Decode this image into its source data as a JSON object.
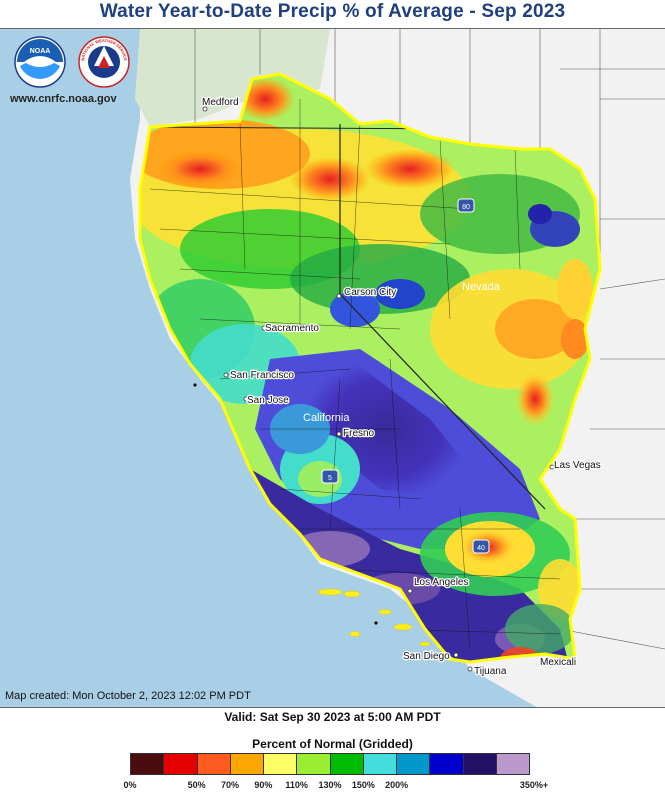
{
  "header": {
    "title": "Water Year-to-Date Precip % of Average - Sep 2023",
    "website": "www.cnrfc.noaa.gov"
  },
  "logos": {
    "noaa": "NOAA",
    "nws": "NATIONAL WEATHER SERVICE"
  },
  "map": {
    "places": [
      {
        "name": "Medford",
        "kind": "city"
      },
      {
        "name": "Carson City",
        "kind": "city"
      },
      {
        "name": "Nevada",
        "kind": "state"
      },
      {
        "name": "Sacramento",
        "kind": "city"
      },
      {
        "name": "San Francisco",
        "kind": "city"
      },
      {
        "name": "San Jose",
        "kind": "city"
      },
      {
        "name": "California",
        "kind": "state"
      },
      {
        "name": "Fresno",
        "kind": "city"
      },
      {
        "name": "Las Vegas",
        "kind": "city"
      },
      {
        "name": "Los Angeles",
        "kind": "city"
      },
      {
        "name": "San Diego",
        "kind": "city"
      },
      {
        "name": "Tijuana",
        "kind": "city"
      },
      {
        "name": "Mexicali",
        "kind": "city"
      }
    ],
    "highways": [
      "80",
      "5",
      "40"
    ],
    "colors": {
      "ocean": "#a9cfe6",
      "outside_land": "#f2f2f2",
      "boundary": "#ffff00",
      "county_lines": "#000000"
    }
  },
  "footer": {
    "map_created": "Map created: Mon October 2, 2023 12:02 PM PDT",
    "valid": "Valid: Sat Sep 30 2023 at 5:00 AM PDT"
  },
  "legend": {
    "title": "Percent of Normal (Gridded)",
    "labels": [
      "0%",
      "50%",
      "70%",
      "90%",
      "110%",
      "130%",
      "150%",
      "200%",
      "350%+"
    ],
    "colors": [
      "#4a0d0d",
      "#e60000",
      "#ff5a1f",
      "#ffa500",
      "#ffff66",
      "#99ee33",
      "#00bb00",
      "#44dddd",
      "#0099cc",
      "#0000cc",
      "#221166",
      "#bb99cc"
    ]
  }
}
